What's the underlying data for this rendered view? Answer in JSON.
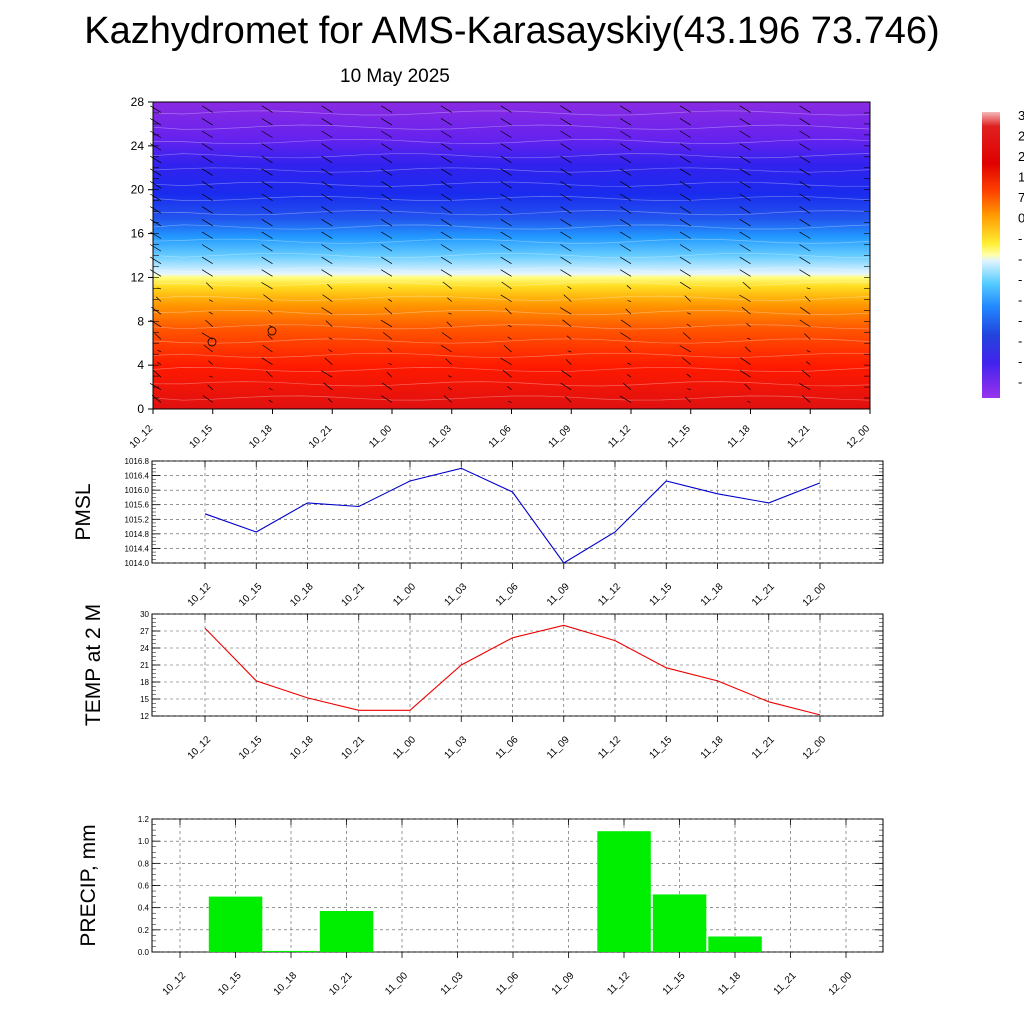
{
  "title": "Kazhydromet for AMS-Karasayskiy(43.196 73.746)",
  "subtitle": "10 May 2025",
  "time_labels": [
    "10_12",
    "10_15",
    "10_18",
    "10_21",
    "11_00",
    "11_03",
    "11_06",
    "11_09",
    "11_12",
    "11_15",
    "11_18",
    "11_21",
    "12_00"
  ],
  "colors": {
    "pmsl_line": "#0000cc",
    "temp_line": "#ee0000",
    "precip_bar": "#00ee00"
  },
  "chart_data": [
    {
      "id": "cross-section",
      "type": "heatmap",
      "y_ticks": [
        "0",
        "4",
        "8",
        "12",
        "16",
        "20",
        "24",
        "28"
      ],
      "ylim": [
        0,
        28
      ],
      "x": [
        "10_12",
        "10_15",
        "10_18",
        "10_21",
        "11_00",
        "11_03",
        "11_06",
        "11_09",
        "11_12",
        "11_15",
        "11_18",
        "11_21",
        "12_00"
      ],
      "colorbar_labels_visible": [
        "3",
        "2",
        "2",
        "1",
        "7",
        "0",
        "-",
        "-",
        "-",
        "-",
        "-",
        "-",
        "-",
        "-"
      ],
      "colorbar_colors": [
        "#f0a0a0",
        "#e02020",
        "#e00000",
        "#ee3300",
        "#ff6600",
        "#ff9900",
        "#ffcc00",
        "#ffee55",
        "#d0f0ff",
        "#55ccff",
        "#22aaff",
        "#2277ee",
        "#2244dd",
        "#3333ee",
        "#5522ee",
        "#7722ee",
        "#9933ee"
      ]
    },
    {
      "id": "pmsl",
      "type": "line",
      "ylabel": "PMSL",
      "ylim": [
        1014.0,
        1016.8
      ],
      "y_ticks": [
        "1014.0",
        "1014.4",
        "1014.8",
        "1015.2",
        "1015.6",
        "1016.0",
        "1016.4",
        "1016.8"
      ],
      "x": [
        "10_12",
        "10_15",
        "10_18",
        "10_21",
        "11_00",
        "11_03",
        "11_06",
        "11_09",
        "11_12",
        "11_15",
        "11_18",
        "11_21",
        "12_00"
      ],
      "values": [
        1015.35,
        1014.85,
        1015.65,
        1015.55,
        1016.25,
        1016.6,
        1015.95,
        1014.0,
        1014.85,
        1016.25,
        1015.9,
        1015.65,
        1016.2
      ]
    },
    {
      "id": "temp",
      "type": "line",
      "ylabel": "TEMP at 2 M",
      "ylim": [
        12,
        30
      ],
      "y_ticks": [
        "12",
        "15",
        "18",
        "21",
        "24",
        "27",
        "30"
      ],
      "x": [
        "10_12",
        "10_15",
        "10_18",
        "10_21",
        "11_00",
        "11_03",
        "11_06",
        "11_09",
        "11_12",
        "11_15",
        "11_18",
        "11_21",
        "12_00"
      ],
      "values": [
        27.5,
        18.2,
        15.2,
        13.0,
        13.0,
        21.0,
        25.8,
        28.0,
        25.3,
        20.5,
        18.2,
        14.5,
        12.2
      ]
    },
    {
      "id": "precip",
      "type": "bar",
      "ylabel": "PRECIP, mm",
      "ylim": [
        0,
        1.2
      ],
      "y_ticks": [
        "0.0",
        "0.2",
        "0.4",
        "0.6",
        "0.8",
        "1.0",
        "1.2"
      ],
      "categories": [
        "10_12",
        "10_15",
        "10_18",
        "10_21",
        "11_00",
        "11_03",
        "11_06",
        "11_09",
        "11_12",
        "11_15",
        "11_18",
        "11_21",
        "12_00"
      ],
      "values": [
        0,
        0.5,
        0.01,
        0.37,
        0,
        0,
        0,
        0,
        1.09,
        0.52,
        0.14,
        0,
        0
      ]
    }
  ]
}
